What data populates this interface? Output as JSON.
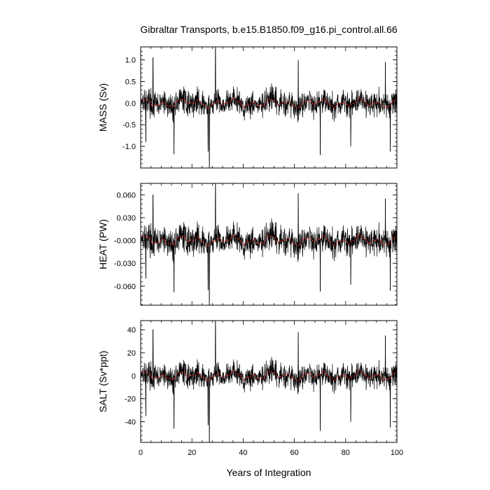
{
  "figure": {
    "title": "Gibraltar Transports, b.e15.B1850.f09_g16.pi_control.all.66",
    "xlabel": "Years of Integration"
  },
  "chart_data": [
    {
      "type": "line",
      "ylabel": "MASS (Sv)",
      "xlim": [
        0,
        100
      ],
      "ylim": [
        -1.5,
        1.3
      ],
      "xticks": [
        0,
        20,
        40,
        60,
        80,
        100
      ],
      "xtick_labels": [
        "0",
        "20",
        "40",
        "60",
        "80",
        "100"
      ],
      "yticks": [
        1.0,
        0.5,
        0.0,
        -0.5,
        -1.0
      ],
      "ytick_labels": [
        "1.0",
        "0.5",
        "0.0",
        "-0.5",
        "-1.0"
      ],
      "yminor_step": 0.1,
      "series": [
        {
          "role": "monthly",
          "color": "#000000",
          "amplitude": 0.25,
          "spikes": [
            [
              29.2,
              1.35
            ],
            [
              26.8,
              -1.5
            ],
            [
              13.0,
              -1.18
            ],
            [
              26.3,
              -1.12
            ],
            [
              97.4,
              -1.12
            ],
            [
              70.1,
              -1.2
            ],
            [
              4.8,
              1.05
            ],
            [
              61.5,
              1.0
            ],
            [
              95.5,
              0.95
            ],
            [
              82.0,
              -1.0
            ],
            [
              2.0,
              -0.9
            ]
          ]
        },
        {
          "role": "running-mean",
          "color": "#e8322a",
          "amplitude": 0.08
        }
      ]
    },
    {
      "type": "line",
      "ylabel": "HEAT (PW)",
      "xlim": [
        0,
        100
      ],
      "ylim": [
        -0.085,
        0.075
      ],
      "xticks": [
        0,
        20,
        40,
        60,
        80,
        100
      ],
      "xtick_labels": [
        "0",
        "20",
        "40",
        "60",
        "80",
        "100"
      ],
      "yticks": [
        0.06,
        0.03,
        0.0,
        -0.03,
        -0.06
      ],
      "ytick_labels": [
        "0.060",
        "0.030",
        "-0.000",
        "-0.030",
        "-0.060"
      ],
      "yminor_step": 0.006,
      "series": [
        {
          "role": "monthly",
          "color": "#000000",
          "amplitude": 0.016,
          "spikes": [
            [
              29.2,
              0.075
            ],
            [
              26.8,
              -0.085
            ],
            [
              13.0,
              -0.068
            ],
            [
              26.3,
              -0.065
            ],
            [
              97.4,
              -0.066
            ],
            [
              70.1,
              -0.067
            ],
            [
              4.8,
              0.06
            ],
            [
              61.5,
              0.062
            ],
            [
              95.5,
              0.055
            ],
            [
              82.0,
              -0.058
            ],
            [
              2.0,
              -0.05
            ]
          ]
        },
        {
          "role": "running-mean",
          "color": "#e8322a",
          "amplitude": 0.005
        }
      ]
    },
    {
      "type": "line",
      "ylabel": "SALT (Sv*ppt)",
      "xlim": [
        0,
        100
      ],
      "ylim": [
        -58,
        48
      ],
      "xticks": [
        0,
        20,
        40,
        60,
        80,
        100
      ],
      "xtick_labels": [
        "0",
        "20",
        "40",
        "60",
        "80",
        "100"
      ],
      "yticks": [
        40,
        20,
        0,
        -20,
        -40
      ],
      "ytick_labels": [
        "40",
        "20",
        "0",
        "-20",
        "-40"
      ],
      "yminor_step": 4,
      "series": [
        {
          "role": "monthly",
          "color": "#000000",
          "amplitude": 9,
          "spikes": [
            [
              29.2,
              48
            ],
            [
              26.8,
              -58
            ],
            [
              13.0,
              -46
            ],
            [
              26.3,
              -43
            ],
            [
              97.4,
              -45
            ],
            [
              70.1,
              -48
            ],
            [
              4.8,
              40
            ],
            [
              61.5,
              38
            ],
            [
              95.5,
              35
            ],
            [
              82.0,
              -40
            ],
            [
              2.0,
              -35
            ]
          ]
        },
        {
          "role": "running-mean",
          "color": "#e8322a",
          "amplitude": 3
        }
      ]
    }
  ]
}
